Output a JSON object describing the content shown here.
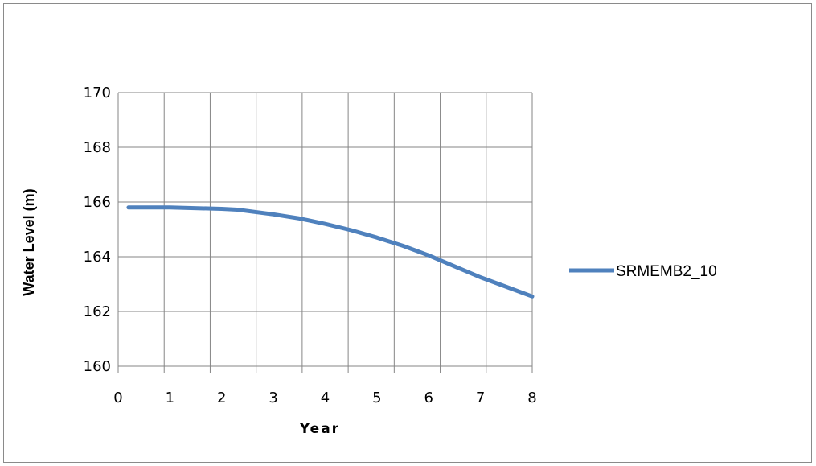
{
  "chart_data": {
    "type": "line",
    "title": "",
    "xlabel": "Year",
    "ylabel": "Water Level (m)",
    "xlim": [
      0,
      8
    ],
    "ylim": [
      160,
      170
    ],
    "x_ticks": [
      "0",
      "1",
      "2",
      "3",
      "4",
      "5",
      "6",
      "7",
      "8"
    ],
    "y_ticks": [
      "160",
      "162",
      "164",
      "166",
      "168",
      "170"
    ],
    "grid": true,
    "legend_position": "right",
    "series": [
      {
        "name": "SRMEMB2_10",
        "color": "#4f81bd",
        "x": [
          0.2,
          1.0,
          2.0,
          2.3,
          3.0,
          3.5,
          4.0,
          4.5,
          5.0,
          5.5,
          6.0,
          6.5,
          7.0,
          7.5,
          8.0
        ],
        "y": [
          165.8,
          165.8,
          165.75,
          165.72,
          165.55,
          165.4,
          165.2,
          164.97,
          164.7,
          164.4,
          164.05,
          163.65,
          163.25,
          162.9,
          162.55
        ]
      }
    ]
  }
}
